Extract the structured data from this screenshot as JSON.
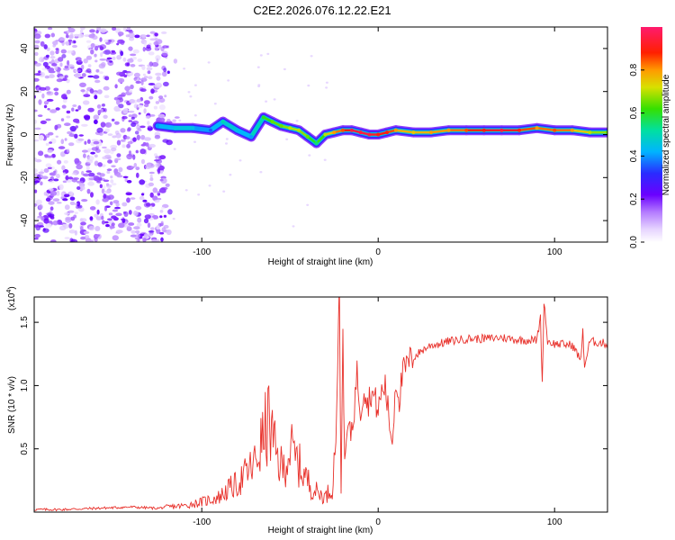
{
  "title": "C2E2.2026.076.12.22.E21",
  "chart_data": [
    {
      "type": "heatmap",
      "title": "C2E2.2026.076.12.22.E21",
      "xlabel": "Height of straight line (km)",
      "ylabel": "Frequency (Hz)",
      "xlim": [
        -195,
        130
      ],
      "ylim": [
        -50,
        50
      ],
      "xticks": [
        "-100",
        "0",
        "100"
      ],
      "xtick_values": [
        -100,
        0,
        100
      ],
      "yticks": [
        "-40",
        "-20",
        "0",
        "20",
        "40"
      ],
      "ytick_values": [
        -40,
        -20,
        0,
        20,
        40
      ],
      "colorbar_label": "Normalized spectral amplitude",
      "colorbar_ticks": [
        "0.0",
        "0.2",
        "0.4",
        "0.6",
        "0.8"
      ],
      "colorbar_tick_values": [
        0.0,
        0.2,
        0.4,
        0.6,
        0.8
      ],
      "ridge": {
        "name": "frequency ridge",
        "x": [
          -125,
          -115,
          -105,
          -95,
          -88,
          -80,
          -72,
          -65,
          -60,
          -55,
          -50,
          -45,
          -40,
          -35,
          -30,
          -25,
          -20,
          -15,
          -10,
          -5,
          0,
          5,
          10,
          20,
          30,
          40,
          50,
          60,
          70,
          80,
          90,
          100,
          110,
          120,
          130
        ],
        "y": [
          4,
          3,
          3,
          2,
          6,
          2,
          -1,
          8,
          6,
          4,
          3,
          2,
          -1,
          -4,
          0,
          1,
          2,
          2,
          1,
          0,
          0,
          1,
          2,
          1,
          1,
          2,
          2,
          2,
          2,
          2,
          3,
          2,
          2,
          1,
          1
        ],
        "amplitude": [
          0.4,
          0.45,
          0.45,
          0.35,
          0.5,
          0.45,
          0.4,
          0.6,
          0.65,
          0.65,
          0.7,
          0.7,
          0.65,
          0.55,
          0.7,
          0.8,
          0.85,
          0.95,
          0.95,
          0.95,
          0.9,
          0.9,
          0.8,
          0.75,
          0.8,
          0.8,
          0.85,
          0.9,
          0.95,
          0.9,
          0.8,
          0.85,
          0.8,
          0.7,
          0.65
        ]
      },
      "noise_region": {
        "x_range": [
          -195,
          -120
        ],
        "y_range": [
          -50,
          50
        ],
        "amplitude": [
          0.0,
          0.2
        ]
      }
    },
    {
      "type": "line",
      "xlabel": "Height of straight line (km)",
      "ylabel": "SNR (10 * v/v)",
      "y_scale_label": "(x10",
      "y_scale_exponent": "4",
      "xlim": [
        -195,
        130
      ],
      "ylim": [
        0,
        1.7
      ],
      "xticks": [
        "-100",
        "0",
        "100"
      ],
      "xtick_values": [
        -100,
        0,
        100
      ],
      "yticks": [
        "0.5",
        "1.0",
        "1.5"
      ],
      "ytick_values": [
        0.5,
        1.0,
        1.5
      ],
      "series": [
        {
          "name": "SNR",
          "color": "#e8302a",
          "x": [
            -195,
            -180,
            -160,
            -140,
            -125,
            -120,
            -110,
            -100,
            -90,
            -85,
            -80,
            -75,
            -70,
            -66,
            -62,
            -58,
            -54,
            -50,
            -46,
            -42,
            -38,
            -34,
            -30,
            -26,
            -24,
            -22,
            -21,
            -20,
            -19,
            -18,
            -17,
            -16,
            -14,
            -12,
            -10,
            -8,
            -6,
            -4,
            -2,
            0,
            2,
            4,
            6,
            8,
            10,
            12,
            14,
            16,
            18,
            20,
            25,
            30,
            35,
            40,
            45,
            50,
            60,
            70,
            80,
            90,
            92,
            93,
            94,
            96,
            100,
            110,
            115,
            116,
            117,
            120,
            125,
            130
          ],
          "y": [
            0.02,
            0.02,
            0.03,
            0.04,
            0.03,
            0.04,
            0.05,
            0.08,
            0.12,
            0.18,
            0.22,
            0.3,
            0.38,
            0.55,
            0.72,
            0.45,
            0.33,
            0.5,
            0.4,
            0.3,
            0.2,
            0.15,
            0.12,
            0.2,
            0.6,
            1.72,
            0.1,
            1.5,
            0.3,
            0.55,
            0.7,
            0.6,
            0.75,
            1.1,
            0.8,
            1.0,
            0.85,
            0.95,
            0.9,
            0.8,
            0.95,
            1.0,
            0.75,
            0.55,
            1.05,
            0.9,
            1.1,
            1.15,
            1.2,
            1.22,
            1.28,
            1.32,
            1.33,
            1.35,
            1.36,
            1.37,
            1.37,
            1.38,
            1.36,
            1.36,
            1.55,
            1.0,
            1.68,
            1.35,
            1.33,
            1.32,
            1.2,
            1.45,
            1.15,
            1.35,
            1.34,
            1.33
          ]
        }
      ]
    }
  ]
}
